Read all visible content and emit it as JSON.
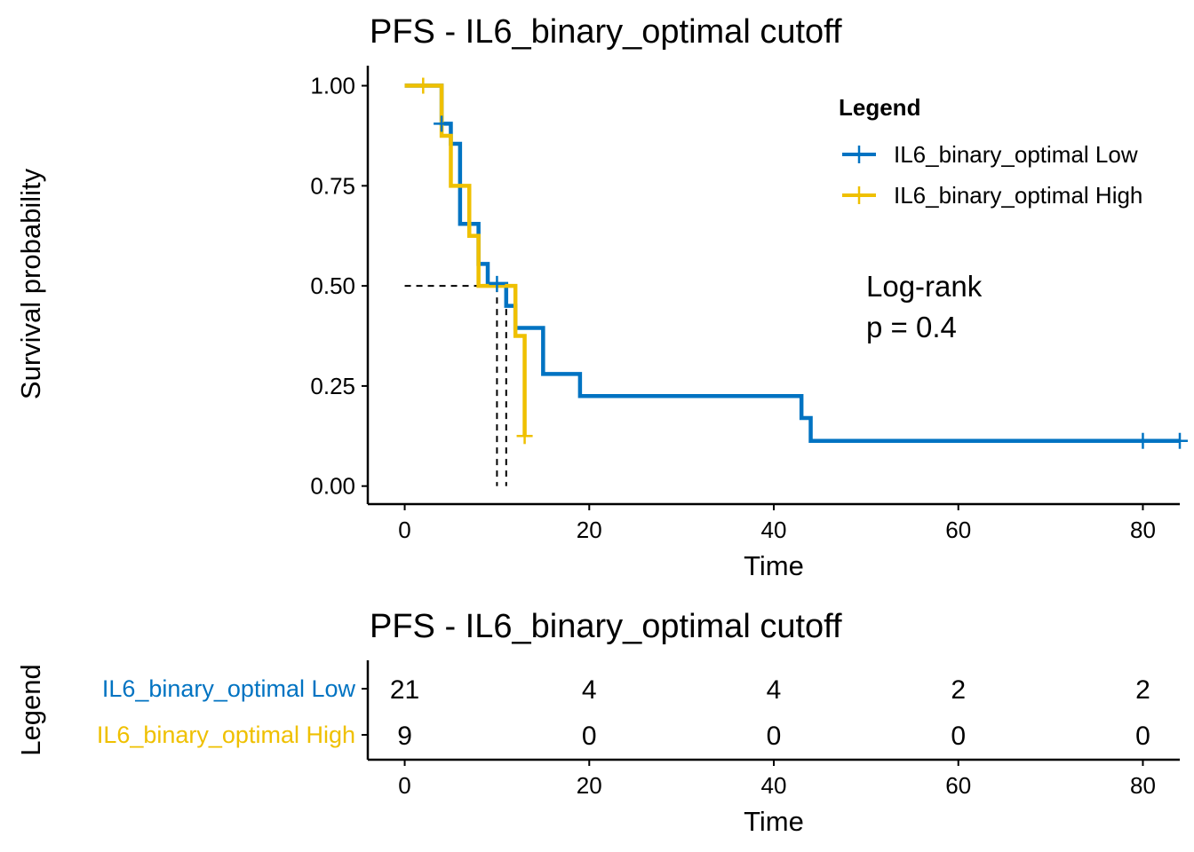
{
  "chart_data": [
    {
      "type": "line",
      "subtype": "kaplan-meier step",
      "title": "PFS - IL6_binary_optimal cutoff",
      "xlabel": "Time",
      "ylabel": "Survival probability",
      "xlim": [
        -4,
        84
      ],
      "ylim": [
        -0.045,
        1.05
      ],
      "xticks": [
        0,
        20,
        40,
        60,
        80
      ],
      "yticks": [
        0,
        0.25,
        0.5,
        0.75,
        1.0
      ],
      "xtick_labels": [
        "0",
        "20",
        "40",
        "60",
        "80"
      ],
      "ytick_labels": [
        "0.00",
        "0.25",
        "0.50",
        "0.75",
        "1.00"
      ],
      "grid": false,
      "legend": {
        "title": "Legend",
        "position": "top-right",
        "entries": [
          "IL6_binary_optimal Low",
          "IL6_binary_optimal High"
        ]
      },
      "annotation": [
        "Log-rank",
        "p = 0.4"
      ],
      "median_survival": {
        "y": 0.5,
        "x_values": [
          10,
          11
        ]
      },
      "series": [
        {
          "name": "IL6_binary_optimal Low",
          "color": "#0073C2",
          "steps": [
            [
              0,
              1.0
            ],
            [
              4,
              0.905
            ],
            [
              5,
              0.855
            ],
            [
              6,
              0.655
            ],
            [
              7,
              0.655
            ],
            [
              8,
              0.555
            ],
            [
              9,
              0.505
            ],
            [
              11,
              0.45
            ],
            [
              12,
              0.395
            ],
            [
              15,
              0.28
            ],
            [
              19,
              0.225
            ],
            [
              43,
              0.17
            ],
            [
              44,
              0.113
            ]
          ],
          "end_x": 84,
          "censor": [
            [
              4,
              0.905
            ],
            [
              10,
              0.505
            ],
            [
              80,
              0.113
            ],
            [
              84,
              0.113
            ]
          ]
        },
        {
          "name": "IL6_binary_optimal High",
          "color": "#EFC000",
          "steps": [
            [
              0,
              1.0
            ],
            [
              4,
              0.875
            ],
            [
              5,
              0.75
            ],
            [
              7,
              0.625
            ],
            [
              8,
              0.5
            ],
            [
              12,
              0.375
            ],
            [
              13,
              0.125
            ]
          ],
          "end_x": 13,
          "censor": [
            [
              2,
              1.0
            ],
            [
              13,
              0.125
            ]
          ]
        }
      ]
    },
    {
      "type": "table",
      "title": "PFS - IL6_binary_optimal cutoff",
      "xlabel": "Time",
      "ylabel": "Legend",
      "xlim": [
        -4,
        84
      ],
      "x": [
        0,
        20,
        40,
        60,
        80
      ],
      "xtick_labels": [
        "0",
        "20",
        "40",
        "60",
        "80"
      ],
      "rows": [
        {
          "name": "IL6_binary_optimal Low",
          "color": "#0073C2",
          "values": [
            21,
            4,
            4,
            2,
            2
          ]
        },
        {
          "name": "IL6_binary_optimal High",
          "color": "#EFC000",
          "values": [
            9,
            0,
            0,
            0,
            0
          ]
        }
      ]
    }
  ]
}
